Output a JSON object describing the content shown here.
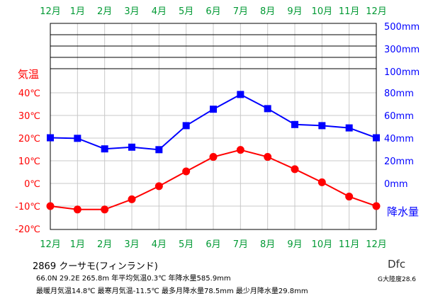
{
  "chart_data": {
    "type": "line",
    "categories": [
      "12月",
      "1月",
      "2月",
      "3月",
      "4月",
      "5月",
      "6月",
      "7月",
      "8月",
      "9月",
      "10月",
      "11月",
      "12月"
    ],
    "series": [
      {
        "name": "気温",
        "axis": "left",
        "unit": "℃",
        "color": "#ff0000",
        "marker": "circle",
        "values": [
          -10.0,
          -11.5,
          -11.5,
          -7.0,
          -1.2,
          5.3,
          11.7,
          14.8,
          11.7,
          6.3,
          0.5,
          -5.8,
          -10.0
        ]
      },
      {
        "name": "降水量",
        "axis": "right",
        "unit": "mm",
        "color": "#0000ff",
        "marker": "square",
        "values": [
          40.3,
          39.8,
          30.5,
          32.0,
          29.8,
          51.0,
          65.5,
          78.5,
          66.0,
          52.0,
          51.0,
          49.0,
          40.3
        ]
      }
    ],
    "left_axis": {
      "label": "気温",
      "ticks": [
        "40℃",
        "30℃",
        "20℃",
        "10℃",
        "0℃",
        "-10℃",
        "-20℃"
      ],
      "tick_values": [
        40,
        30,
        20,
        10,
        0,
        -10,
        -20
      ],
      "range": [
        -20,
        40
      ],
      "color": "#ff0000"
    },
    "right_axis": {
      "label": "降水量",
      "ticks": [
        "500mm",
        "300mm",
        "100mm",
        "80mm",
        "60mm",
        "40mm",
        "20mm",
        "0mm"
      ],
      "linear_ticks": [
        80,
        60,
        40,
        20,
        0
      ],
      "range": [
        0,
        100
      ],
      "compressed_top_ticks": [
        "500mm",
        "300mm",
        "100mm"
      ],
      "color": "#0000ff"
    },
    "month_label_color": "#009933",
    "grid": true
  },
  "footer": {
    "station": "2869  クーサモ(フィンランド)",
    "stats_line1": "66.0N  29.2E  265.8m  年平均気温0.3℃  年降水量585.9mm",
    "stats_line2": "最暖月気温14.8℃  最寒月気温-11.5℃  最多月降水量78.5mm  最少月降水量29.8mm",
    "climate_code": "Dfc",
    "region": "G大陸度28.6"
  }
}
